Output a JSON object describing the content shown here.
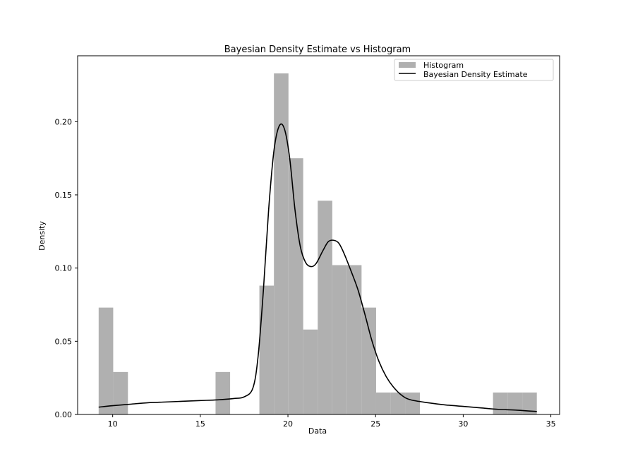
{
  "chart_data": {
    "type": "bar",
    "title": "Bayesian Density Estimate vs Histogram",
    "xlabel": "Data",
    "ylabel": "Density",
    "xlim": [
      8.0,
      35.5
    ],
    "ylim": [
      0.0,
      0.245
    ],
    "xticks": [
      10,
      15,
      20,
      25,
      30,
      35
    ],
    "yticks": [
      0.0,
      0.05,
      0.1,
      0.15,
      0.2
    ],
    "grid": false,
    "legend_position": "top-right",
    "colors": {
      "histogram": "#b0b0b0",
      "density": "#000000"
    },
    "histogram": {
      "name": "Histogram",
      "bin_edges": [
        9.2,
        10.03,
        10.87,
        11.7,
        12.53,
        13.37,
        14.2,
        15.03,
        15.87,
        16.7,
        17.53,
        18.37,
        19.2,
        20.03,
        20.87,
        21.7,
        22.53,
        23.37,
        24.2,
        25.03,
        25.87,
        26.7,
        27.53,
        28.37,
        29.2,
        30.03,
        30.87,
        31.7,
        32.53,
        33.37,
        34.2
      ],
      "values": [
        0.073,
        0.029,
        0,
        0,
        0,
        0,
        0,
        0,
        0.029,
        0,
        0,
        0.088,
        0.233,
        0.175,
        0.058,
        0.146,
        0.102,
        0.102,
        0.073,
        0.015,
        0.015,
        0.015,
        0,
        0,
        0,
        0,
        0,
        0.015,
        0.015,
        0.015
      ]
    },
    "density": {
      "name": "Bayesian Density Estimate",
      "x": [
        9.2,
        10,
        11,
        12,
        13,
        14,
        15,
        16,
        17,
        17.5,
        18.0,
        18.3,
        18.6,
        18.9,
        19.2,
        19.5,
        19.8,
        20.1,
        20.4,
        20.7,
        21.0,
        21.3,
        21.6,
        22.0,
        22.3,
        22.6,
        22.9,
        23.2,
        23.6,
        24.0,
        24.4,
        24.8,
        25.2,
        25.6,
        26.0,
        26.5,
        27.0,
        28.0,
        29.0,
        30.0,
        31.0,
        32.0,
        33.0,
        34.2
      ],
      "y": [
        0.005,
        0.006,
        0.007,
        0.008,
        0.0085,
        0.009,
        0.0095,
        0.01,
        0.011,
        0.012,
        0.018,
        0.04,
        0.085,
        0.14,
        0.18,
        0.197,
        0.195,
        0.175,
        0.14,
        0.115,
        0.104,
        0.101,
        0.103,
        0.112,
        0.118,
        0.119,
        0.117,
        0.11,
        0.098,
        0.085,
        0.068,
        0.05,
        0.036,
        0.026,
        0.019,
        0.013,
        0.01,
        0.008,
        0.0065,
        0.0055,
        0.0045,
        0.0035,
        0.003,
        0.002
      ]
    }
  }
}
